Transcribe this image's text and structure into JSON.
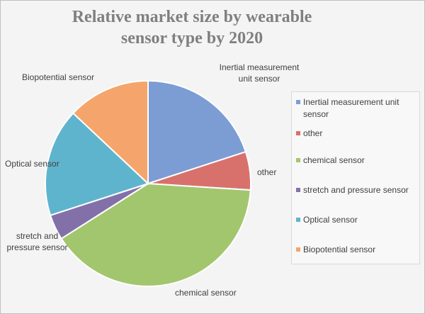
{
  "chart_data": {
    "type": "pie",
    "title": "Relative market size by wearable sensor type by 2020",
    "categories": [
      "Inertial measurement unit sensor",
      "other",
      "chemical sensor",
      "stretch and pressure sensor",
      "Optical sensor",
      "Biopotential sensor"
    ],
    "values": [
      20,
      6,
      40,
      4,
      17,
      13
    ],
    "colors": [
      "#7c9dd3",
      "#d8716c",
      "#a2c66e",
      "#8470a9",
      "#5fb4cd",
      "#f5a56b"
    ],
    "legend": "right"
  }
}
